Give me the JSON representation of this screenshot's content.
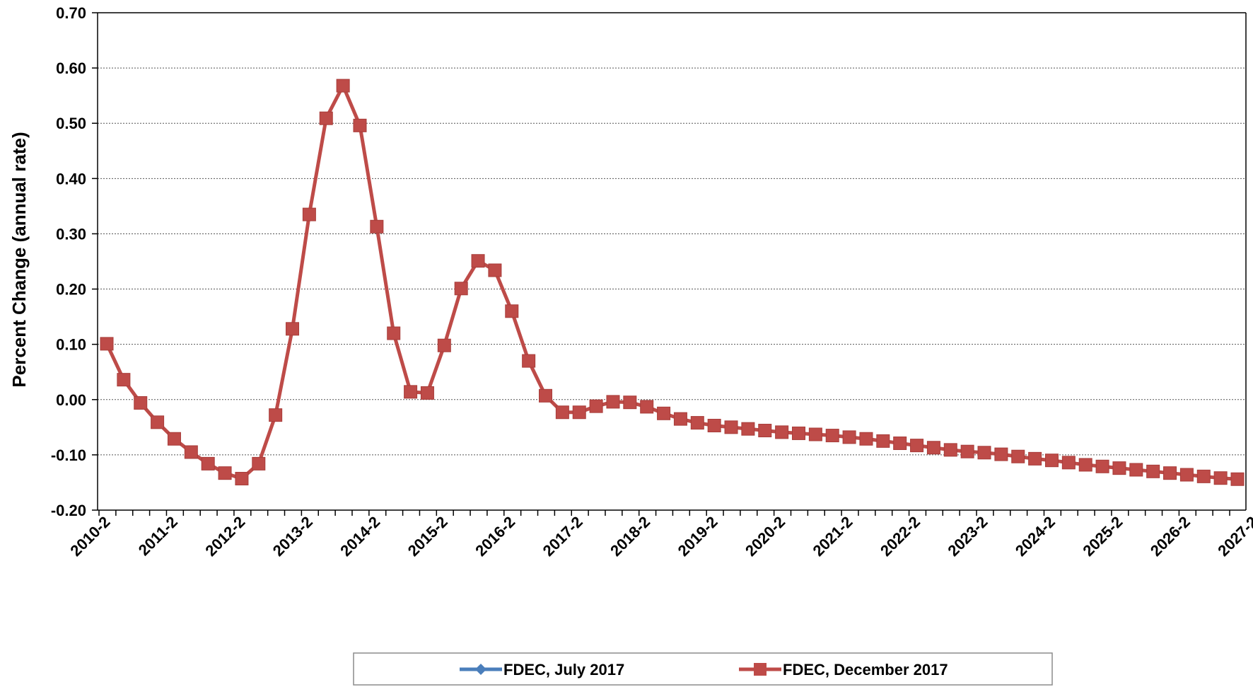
{
  "chart_data": {
    "type": "line",
    "ylabel": "Percent Change (annual rate)",
    "xlabel": "",
    "ylim": [
      -0.2,
      0.7
    ],
    "y_ticks": [
      "0.70",
      "0.60",
      "0.50",
      "0.40",
      "0.30",
      "0.20",
      "0.10",
      "0.00",
      "-0.10",
      "-0.20"
    ],
    "x_tick_labels": [
      "2010-2",
      "2011-2",
      "2012-2",
      "2013-2",
      "2014-2",
      "2015-2",
      "2016-2",
      "2017-2",
      "2018-2",
      "2019-2",
      "2020-2",
      "2021-2",
      "2022-2",
      "2023-2",
      "2024-2",
      "2025-2",
      "2026-2",
      "2027-2"
    ],
    "grid": true,
    "legend_position": "bottom",
    "series": [
      {
        "name": "FDEC, July 2017",
        "color": "#4a7ebb",
        "marker": "diamond",
        "values": []
      },
      {
        "name": "FDEC, December 2017",
        "color": "#be4b48",
        "marker": "square",
        "values": [
          0.101,
          0.036,
          -0.006,
          -0.041,
          -0.071,
          -0.095,
          -0.116,
          -0.133,
          -0.143,
          -0.116,
          -0.028,
          0.128,
          0.335,
          0.509,
          0.568,
          0.496,
          0.313,
          0.12,
          0.014,
          0.012,
          0.098,
          0.201,
          0.251,
          0.234,
          0.16,
          0.07,
          0.007,
          -0.023,
          -0.023,
          -0.012,
          -0.004,
          -0.005,
          -0.013,
          -0.025,
          -0.035,
          -0.042,
          -0.047,
          -0.05,
          -0.053,
          -0.056,
          -0.059,
          -0.061,
          -0.063,
          -0.065,
          -0.068,
          -0.071,
          -0.075,
          -0.079,
          -0.083,
          -0.087,
          -0.091,
          -0.094,
          -0.096,
          -0.099,
          -0.103,
          -0.107,
          -0.11,
          -0.114,
          -0.118,
          -0.121,
          -0.124,
          -0.127,
          -0.13,
          -0.133,
          -0.136,
          -0.139,
          -0.142,
          -0.144
        ]
      }
    ]
  }
}
